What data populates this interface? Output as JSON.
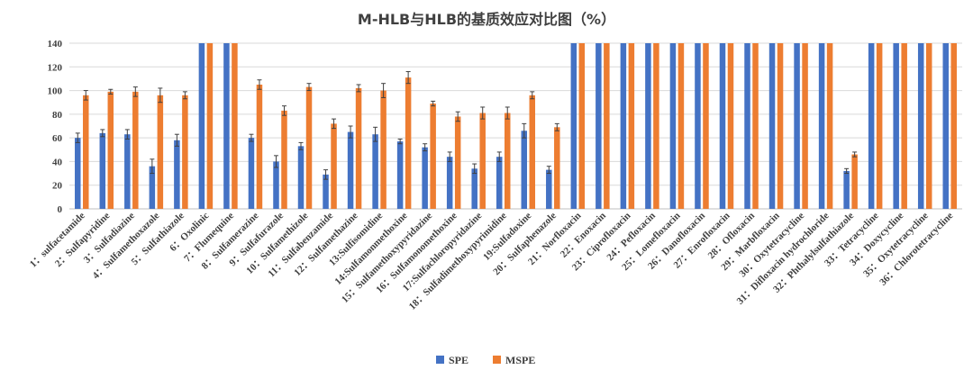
{
  "chart_data": {
    "type": "bar",
    "title": "M-HLB与HLB的基质效应对比图（%）",
    "xlabel": "",
    "ylabel": "",
    "ylim": [
      0,
      140
    ],
    "yticks": [
      0,
      20,
      40,
      60,
      80,
      100,
      120,
      140
    ],
    "grid": true,
    "legend_position": "bottom",
    "categories": [
      "1：sulfacetamide",
      "2：Sulfapyridine",
      "3：Sulfadiazine",
      "4：Sulfamethoxazole",
      "5：Sulfathiazole",
      "6：Oxolinic",
      "7：Flumequine",
      "8：Sulfamerazine",
      "9：Sulfafurazole",
      "10：Sulfamethizole",
      "11：Sulfabenzamide",
      "12：Sulfamethazine",
      "13:Sulfisomidine",
      "14:Sulfamonmethoxine",
      "15：Sulfamethoxypyridazine",
      "16：Sulfamonomethoxine",
      "17:Sulfachloropyridazine",
      "18：Sulfadimethoxypyrimidine",
      "19:Sulfadoxine",
      "20：Sulfaphenazole",
      "21：Norfloxacin",
      "22：Enoxacin",
      "23：Ciprofloxacin",
      "24：Pefloxacin",
      "25：Lomefloxacin",
      "26：Danofloxacin",
      "27：Enrofloxacin",
      "28：Ofloxacin",
      "29：Marbfloxacin",
      "30：Oxytetracycline",
      "31：Difloxacin hydrochloride",
      "32：Phthalylsulfathiazole",
      "33：Tetracycline",
      "34：Doxycycline",
      "35：Oxytetracycline",
      "36：Chlorotetracycline"
    ],
    "series": [
      {
        "name": "SPE",
        "color": "#4472c4",
        "values": [
          60,
          64,
          63,
          36,
          58,
          140,
          140,
          60,
          40,
          53,
          29,
          65,
          63,
          57,
          52,
          44,
          34,
          44,
          66,
          33,
          140,
          140,
          140,
          140,
          140,
          140,
          140,
          140,
          140,
          140,
          140,
          32,
          140,
          140,
          140,
          140
        ],
        "errors": [
          4,
          3,
          4,
          6,
          5,
          0,
          0,
          3,
          5,
          3,
          4,
          5,
          6,
          2,
          3,
          4,
          4,
          4,
          6,
          3,
          0,
          0,
          0,
          0,
          0,
          0,
          0,
          0,
          0,
          0,
          0,
          2,
          0,
          0,
          0,
          0
        ]
      },
      {
        "name": "MSPE",
        "color": "#ed7d31",
        "values": [
          96,
          99,
          99,
          96,
          96,
          140,
          140,
          105,
          83,
          103,
          72,
          102,
          100,
          111,
          89,
          78,
          81,
          81,
          96,
          69,
          140,
          140,
          140,
          140,
          140,
          140,
          140,
          140,
          140,
          140,
          140,
          46,
          140,
          140,
          140,
          140
        ],
        "errors": [
          4,
          2,
          4,
          6,
          3,
          0,
          0,
          4,
          4,
          3,
          4,
          3,
          6,
          5,
          2,
          4,
          5,
          5,
          3,
          3,
          0,
          0,
          0,
          0,
          0,
          0,
          0,
          0,
          0,
          0,
          0,
          2,
          0,
          0,
          0,
          0
        ]
      }
    ]
  }
}
